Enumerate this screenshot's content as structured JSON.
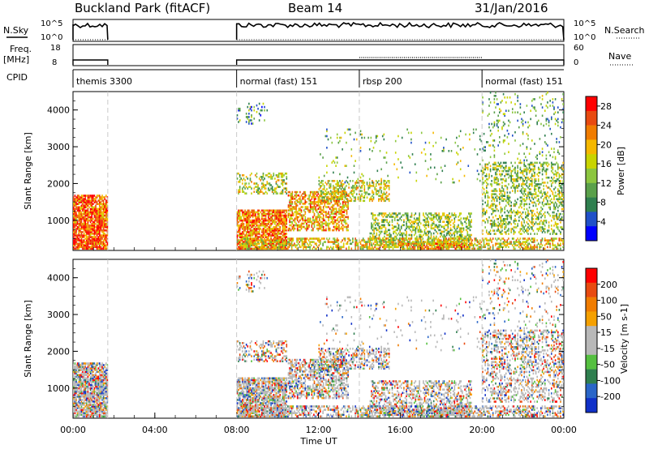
{
  "header": {
    "station": "Buckland Park (fitACF)",
    "beam": "Beam 14",
    "date": "31/Jan/2016"
  },
  "colors": {
    "power_scale": [
      "#0000ff",
      "#2050c8",
      "#2f7f4f",
      "#5aa04a",
      "#8cc63f",
      "#c8d400",
      "#f5b800",
      "#f07c00",
      "#e84a10",
      "#ff0000"
    ],
    "velocity_scale": [
      "#1030c8",
      "#2a66c8",
      "#2f7f4f",
      "#55c040",
      "#b8b8b8",
      "#b8b8b8",
      "#f5a000",
      "#f07c00",
      "#e84a10",
      "#ff0000"
    ]
  },
  "chart_data": [
    {
      "type": "line",
      "name": "top-strip-nsky-nsearch",
      "left_label": "N.Sky",
      "right_label": "N.Search",
      "left_ticks": [
        "10^5",
        "10^0"
      ],
      "right_ticks": [
        "10^5",
        "10^0"
      ],
      "segments": [
        {
          "x_start": 0.0,
          "x_end": 1.7,
          "value": "high"
        },
        {
          "x_start": 8.0,
          "x_end": 24.0,
          "value": "high"
        }
      ]
    },
    {
      "type": "line",
      "name": "freq-nave-strip",
      "left_label": "Freq.",
      "left_unit": "[MHz]",
      "right_label": "Nave",
      "left_ticks": [
        "18",
        "8"
      ],
      "right_ticks": [
        "60",
        "0"
      ],
      "segments": [
        {
          "x_start": 0.0,
          "x_end": 1.7,
          "value": 10
        },
        {
          "x_start": 8.0,
          "x_end": 24.0,
          "value": 10
        }
      ]
    },
    {
      "type": "table",
      "name": "cpid-strip",
      "label": "CPID",
      "modes": [
        {
          "start": 0.0,
          "label": "themis 3300"
        },
        {
          "start": 8.0,
          "label": "normal (fast) 151"
        },
        {
          "start": 14.0,
          "label": "rbsp 200"
        },
        {
          "start": 20.0,
          "label": "normal (fast) 151"
        }
      ],
      "dashed_lines_at": [
        1.7,
        8.0,
        14.0,
        20.0
      ]
    },
    {
      "type": "heatmap",
      "name": "power-panel",
      "ylabel": "Slant Range [km]",
      "xlim": [
        0,
        24
      ],
      "ylim": [
        180,
        4500
      ],
      "yticks": [
        1000,
        2000,
        3000,
        4000
      ],
      "colorbar_label": "Power [dB]",
      "colorbar_ticks": [
        4,
        8,
        12,
        16,
        20,
        24,
        28
      ],
      "colorbar_range": [
        0,
        30
      ]
    },
    {
      "type": "heatmap",
      "name": "velocity-panel",
      "ylabel": "Slant Range [km]",
      "xlim": [
        0,
        24
      ],
      "ylim": [
        180,
        4500
      ],
      "yticks": [
        1000,
        2000,
        3000,
        4000
      ],
      "colorbar_label": "Velocity [m s-1]",
      "colorbar_ticks": [
        200,
        100,
        50,
        15,
        -15,
        -50,
        -100,
        -200
      ],
      "xticks": [
        "00:00",
        "04:00",
        "08:00",
        "12:00",
        "16:00",
        "20:00",
        "00:00"
      ],
      "xticks_hours": [
        0,
        4,
        8,
        12,
        16,
        20,
        24
      ],
      "xlabel": "Time UT"
    }
  ]
}
